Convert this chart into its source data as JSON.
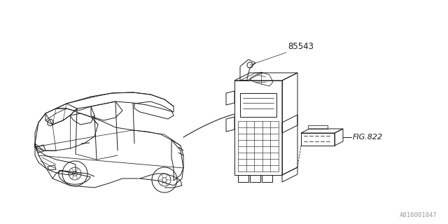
{
  "bg_color": "#ffffff",
  "line_color": "#1a1a1a",
  "label_85543": "85543",
  "label_fig822": "FIG.822",
  "label_part_num": "A816001047",
  "fig_size": [
    6.4,
    3.2
  ],
  "dpi": 100,
  "lw": 0.7
}
